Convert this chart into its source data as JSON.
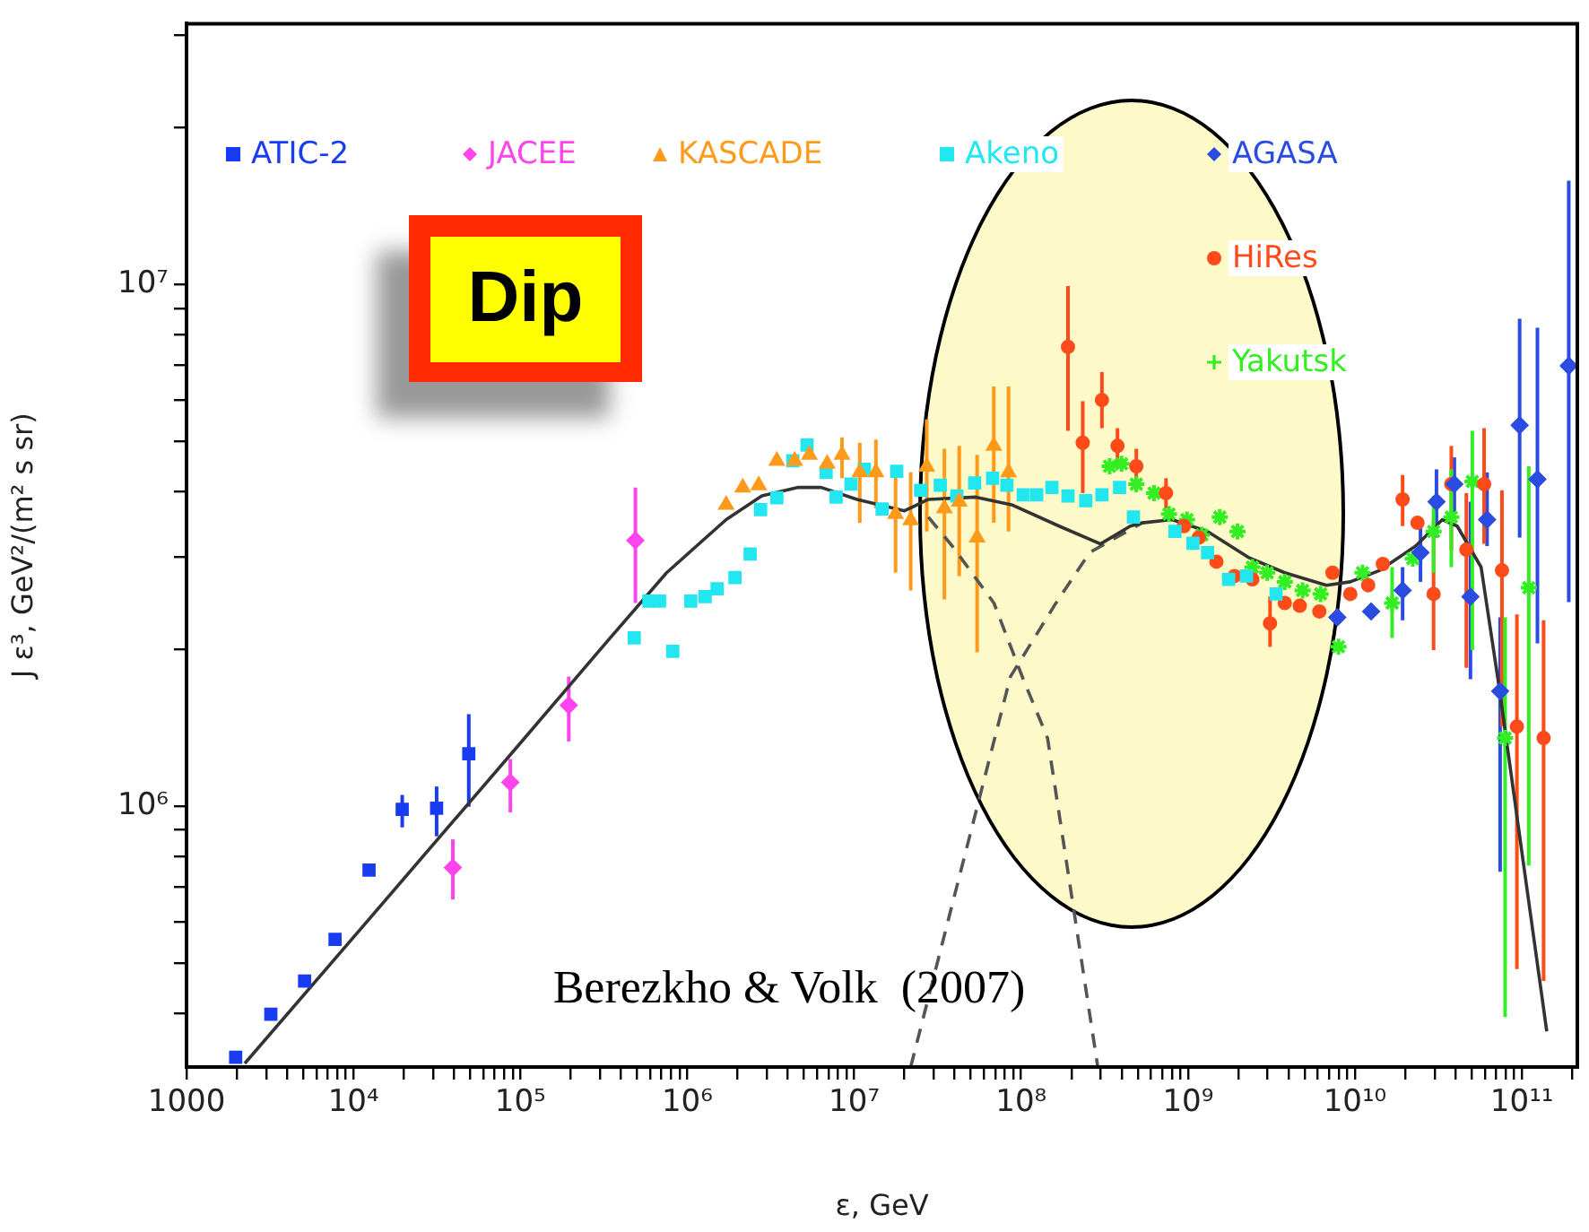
{
  "chart_data": {
    "type": "scatter",
    "xlabel": "ε, GeV",
    "ylabel": "J ε³, GeV²/(m² s sr)",
    "log": "xy",
    "legend": "top",
    "xlim": [
      1000,
      215000000000
    ],
    "ylim": [
      316000,
      31600000
    ],
    "xticks": [
      {
        "value": 1000,
        "label": "1000"
      },
      {
        "value": 2000,
        "label": null
      },
      {
        "value": 3000,
        "label": null
      },
      {
        "value": 4000,
        "label": null
      },
      {
        "value": 5000,
        "label": null
      },
      {
        "value": 6000,
        "label": null
      },
      {
        "value": 7000,
        "label": null
      },
      {
        "value": 8000,
        "label": null
      },
      {
        "value": 9000,
        "label": null
      },
      {
        "value": 10000,
        "label": "10⁴"
      },
      {
        "value": 20000,
        "label": null
      },
      {
        "value": 30000,
        "label": null
      },
      {
        "value": 40000,
        "label": null
      },
      {
        "value": 50000,
        "label": null
      },
      {
        "value": 60000,
        "label": null
      },
      {
        "value": 70000,
        "label": null
      },
      {
        "value": 80000,
        "label": null
      },
      {
        "value": 90000,
        "label": null
      },
      {
        "value": 100000,
        "label": "10⁵"
      },
      {
        "value": 200000,
        "label": null
      },
      {
        "value": 300000,
        "label": null
      },
      {
        "value": 400000,
        "label": null
      },
      {
        "value": 500000,
        "label": null
      },
      {
        "value": 600000,
        "label": null
      },
      {
        "value": 700000,
        "label": null
      },
      {
        "value": 800000,
        "label": null
      },
      {
        "value": 900000,
        "label": null
      },
      {
        "value": 1000000,
        "label": "10⁶"
      },
      {
        "value": 2000000,
        "label": null
      },
      {
        "value": 3000000,
        "label": null
      },
      {
        "value": 4000000,
        "label": null
      },
      {
        "value": 5000000,
        "label": null
      },
      {
        "value": 6000000,
        "label": null
      },
      {
        "value": 7000000,
        "label": null
      },
      {
        "value": 8000000,
        "label": null
      },
      {
        "value": 9000000,
        "label": null
      },
      {
        "value": 10000000,
        "label": "10⁷"
      },
      {
        "value": 20000000,
        "label": null
      },
      {
        "value": 30000000,
        "label": null
      },
      {
        "value": 40000000,
        "label": null
      },
      {
        "value": 50000000,
        "label": null
      },
      {
        "value": 60000000,
        "label": null
      },
      {
        "value": 70000000,
        "label": null
      },
      {
        "value": 80000000,
        "label": null
      },
      {
        "value": 90000000,
        "label": null
      },
      {
        "value": 100000000,
        "label": "10⁸"
      },
      {
        "value": 200000000,
        "label": null
      },
      {
        "value": 300000000,
        "label": null
      },
      {
        "value": 400000000,
        "label": null
      },
      {
        "value": 500000000,
        "label": null
      },
      {
        "value": 600000000,
        "label": null
      },
      {
        "value": 700000000,
        "label": null
      },
      {
        "value": 800000000,
        "label": null
      },
      {
        "value": 900000000,
        "label": null
      },
      {
        "value": 1000000000,
        "label": "10⁹"
      },
      {
        "value": 2000000000,
        "label": null
      },
      {
        "value": 3000000000,
        "label": null
      },
      {
        "value": 4000000000,
        "label": null
      },
      {
        "value": 5000000000,
        "label": null
      },
      {
        "value": 6000000000,
        "label": null
      },
      {
        "value": 7000000000,
        "label": null
      },
      {
        "value": 8000000000,
        "label": null
      },
      {
        "value": 9000000000,
        "label": null
      },
      {
        "value": 10000000000,
        "label": "10¹⁰"
      },
      {
        "value": 20000000000,
        "label": null
      },
      {
        "value": 30000000000,
        "label": null
      },
      {
        "value": 40000000000,
        "label": null
      },
      {
        "value": 50000000000,
        "label": null
      },
      {
        "value": 60000000000,
        "label": null
      },
      {
        "value": 70000000000,
        "label": null
      },
      {
        "value": 80000000000,
        "label": null
      },
      {
        "value": 90000000000,
        "label": null
      },
      {
        "value": 100000000000,
        "label": "10¹¹"
      },
      {
        "value": 200000000000,
        "label": null
      }
    ],
    "yticks": [
      {
        "value": 400000,
        "label": null
      },
      {
        "value": 500000,
        "label": null
      },
      {
        "value": 600000,
        "label": null
      },
      {
        "value": 700000,
        "label": null
      },
      {
        "value": 800000,
        "label": null
      },
      {
        "value": 900000,
        "label": null
      },
      {
        "value": 1000000,
        "label": "10⁶"
      },
      {
        "value": 2000000,
        "label": null
      },
      {
        "value": 3000000,
        "label": null
      },
      {
        "value": 4000000,
        "label": null
      },
      {
        "value": 5000000,
        "label": null
      },
      {
        "value": 6000000,
        "label": null
      },
      {
        "value": 7000000,
        "label": null
      },
      {
        "value": 8000000,
        "label": null
      },
      {
        "value": 9000000,
        "label": null
      },
      {
        "value": 10000000,
        "label": "10⁷"
      },
      {
        "value": 20000000,
        "label": null
      },
      {
        "value": 30000000,
        "label": null
      }
    ],
    "annotations": [
      "Dip",
      "Berezkho & Volk  (2007)"
    ],
    "series": [
      {
        "type": "line",
        "color": "#333333",
        "marker": "none",
        "line_style": "solid",
        "x": [
          2234,
          10000,
          100000,
          332000,
          752000,
          1710000,
          2800000,
          4570000,
          6350000,
          10400000,
          20000000,
          27800000,
          53600000,
          87700000,
          169000000,
          299000000,
          451000000,
          532000000,
          802000000,
          1310000000,
          2330000000,
          3800000000,
          6750000000,
          9380000000,
          14100000000,
          23100000000,
          33400000000,
          41000000000,
          57000000000,
          72900000000,
          101000000000,
          141000000000
        ],
        "values": [
          321000,
          560000,
          1320000,
          2070000,
          2800000,
          3540000,
          3930000,
          4080000,
          4080000,
          3870000,
          3680000,
          3870000,
          3910000,
          3780000,
          3440000,
          3180000,
          3440000,
          3490000,
          3540000,
          3360000,
          2990000,
          2800000,
          2650000,
          2690000,
          2830000,
          3150000,
          3540000,
          3440000,
          2870000,
          1700000,
          798000,
          370000
        ]
      },
      {
        "type": "line",
        "color": "#555555",
        "marker": "none",
        "line_style": "dashed",
        "x": [
          27800000,
          38700000,
          68700000,
          103000000,
          144000000,
          288000000
        ],
        "values": [
          3580000,
          3150000,
          2450000,
          1750000,
          1350000,
          316000
        ]
      },
      {
        "type": "line",
        "color": "#555555",
        "marker": "none",
        "line_style": "dashed",
        "x": [
          21800000,
          43400000,
          86300000,
          158000000,
          257000000,
          532000000
        ],
        "values": [
          316000,
          748000,
          1770000,
          2420000,
          3060000,
          3490000
        ]
      },
      {
        "name": "ATIC-2",
        "type": "scatter",
        "color": "#1a3cf0",
        "marker": "square",
        "x": [
          1970,
          3200,
          5100,
          7760,
          12400,
          19600,
          31500,
          49100
        ],
        "values": [
          330000,
          399000,
          462000,
          555000,
          754000,
          985000,
          990000,
          1260000
        ],
        "errors": [
          null,
          null,
          null,
          null,
          null,
          [
            910000,
            1050000
          ],
          [
            875000,
            1090000
          ],
          [
            997000,
            1500000
          ]
        ]
      },
      {
        "name": "JACEE",
        "type": "scatter",
        "color": "#ff44ee",
        "marker": "diamond",
        "x": [
          39400,
          87100,
          195000,
          489000
        ],
        "values": [
          762000,
          1110000,
          1560000,
          3230000
        ],
        "errors": [
          [
            662000,
            863000
          ],
          [
            972000,
            1230000
          ],
          [
            1330000,
            1770000
          ],
          [
            2450000,
            4080000
          ]
        ]
      },
      {
        "name": "KASCADE",
        "type": "scatter",
        "color": "#ff9a1a",
        "marker": "triangle",
        "x": [
          1710000,
          2150000,
          2680000,
          3440000,
          4400000,
          5390000,
          6890000,
          8450000,
          10800000,
          13500000,
          17700000,
          21800000,
          27200000,
          34700000,
          42600000,
          54500000,
          68600000,
          84100000
        ],
        "values": [
          3780000,
          4080000,
          4120000,
          4590000,
          4590000,
          4710000,
          4530000,
          4710000,
          4360000,
          4360000,
          3630000,
          3530000,
          4470000,
          3720000,
          3830000,
          3270000,
          4900000,
          4360000
        ],
        "errors": [
          null,
          null,
          null,
          null,
          null,
          null,
          null,
          [
            4250000,
            5090000
          ],
          [
            3490000,
            4970000
          ],
          [
            3720000,
            5040000
          ],
          [
            2800000,
            4360000
          ],
          [
            2590000,
            4360000
          ],
          [
            3360000,
            5510000
          ],
          [
            2490000,
            4840000
          ],
          [
            2760000,
            4900000
          ],
          [
            1970000,
            4710000
          ],
          [
            3490000,
            6370000
          ],
          [
            3360000,
            6370000
          ]
        ]
      },
      {
        "name": "Akeno",
        "type": "scatter",
        "color": "#22e6f0",
        "marker": "square",
        "x": [
          481000,
          589000,
          682000,
          819000,
          1050000,
          1280000,
          1510000,
          1930000,
          2380000,
          2750000,
          3440000,
          4290000,
          5220000,
          6790000,
          7800000,
          9570000,
          11500000,
          14700000,
          18000000,
          25000000,
          32800000,
          41200000,
          52700000,
          67500000,
          82200000,
          103000000,
          124000000,
          153000000,
          191000000,
          244000000,
          305000000,
          389000000,
          471000000,
          835000000,
          1070000000,
          1310000000,
          1750000000,
          2240000000,
          3370000000
        ],
        "values": [
          2100000,
          2470000,
          2470000,
          1980000,
          2470000,
          2520000,
          2610000,
          2740000,
          3040000,
          3700000,
          3900000,
          4590000,
          4920000,
          4360000,
          3910000,
          4140000,
          4420000,
          3710000,
          4380000,
          4030000,
          4120000,
          3930000,
          4160000,
          4250000,
          4120000,
          3950000,
          3950000,
          4080000,
          3930000,
          3850000,
          3950000,
          4080000,
          3580000,
          3360000,
          3190000,
          3060000,
          2720000,
          2760000,
          2550000
        ]
      },
      {
        "name": "AGASA",
        "type": "scatter",
        "color": "#2b4ce0",
        "marker": "diamond",
        "x": [
          7840000000,
          12500000000,
          19300000000,
          24700000000,
          30800000000,
          39400000000,
          49200000000,
          61900000000,
          74100000000,
          97000000000,
          124000000000,
          191000000000
        ],
        "values": [
          2300000,
          2360000,
          2590000,
          3060000,
          3830000,
          4140000,
          2520000,
          3540000,
          1660000,
          5370000,
          4230000,
          6980000
        ],
        "errors": [
          null,
          null,
          [
            2270000,
            2870000
          ],
          [
            2690000,
            3440000
          ],
          [
            3270000,
            4420000
          ],
          [
            3630000,
            4660000
          ],
          [
            1750000,
            3830000
          ],
          [
            3150000,
            4360000
          ],
          [
            748000,
            2300000
          ],
          [
            3270000,
            8590000
          ],
          [
            2050000,
            8260000
          ],
          [
            2460000,
            15800000
          ]
        ]
      },
      {
        "name": "HiRes",
        "type": "scatter",
        "color": "#ff4a1a",
        "marker": "circle",
        "x": [
          191000000,
          234000000,
          305000000,
          378000000,
          490000000,
          738000000,
          944000000,
          1160000000,
          1480000000,
          1900000000,
          2430000000,
          3100000000,
          3800000000,
          4670000000,
          6120000000,
          7340000000,
          9380000000,
          12000000000,
          14700000000,
          19300000000,
          23700000000,
          29600000000,
          37800000000,
          46500000000,
          59400000000,
          76000000000,
          93400000000,
          135000000000
        ],
        "values": [
          7590000,
          4970000,
          6000000,
          4900000,
          4480000,
          3980000,
          3440000,
          3270000,
          2940000,
          2760000,
          2720000,
          2240000,
          2450000,
          2420000,
          2360000,
          2800000,
          2550000,
          2650000,
          2910000,
          3870000,
          3490000,
          2550000,
          4140000,
          3100000,
          4140000,
          2830000,
          1420000,
          1350000
        ],
        "errors": [
          [
            5240000,
            9930000
          ],
          [
            3980000,
            5970000
          ],
          [
            5300000,
            6790000
          ],
          [
            4480000,
            5300000
          ],
          [
            4030000,
            4840000
          ],
          [
            3720000,
            4250000
          ],
          null,
          null,
          null,
          null,
          null,
          [
            2020000,
            2520000
          ],
          null,
          null,
          null,
          null,
          null,
          null,
          null,
          [
            3440000,
            4310000
          ],
          null,
          [
            1990000,
            3540000
          ],
          [
            3100000,
            4900000
          ],
          [
            1840000,
            3980000
          ],
          [
            3180000,
            5300000
          ],
          [
            1420000,
            4030000
          ],
          [
            487000,
            2330000
          ],
          [
            462000,
            2270000
          ]
        ]
      },
      {
        "name": "Yakutsk",
        "type": "scatter",
        "color": "#33ee22",
        "marker": "cross",
        "x": [
          339000000,
          400000000,
          490000000,
          626000000,
          769000000,
          986000000,
          1210000000,
          1550000000,
          1980000000,
          2430000000,
          2980000000,
          3800000000,
          4860000000,
          6230000000,
          7970000000,
          11100000000,
          16700000000,
          22200000000,
          29600000000,
          37800000000,
          50500000000,
          79400000000,
          110000000000
        ],
        "values": [
          4480000,
          4530000,
          4140000,
          3980000,
          3630000,
          3540000,
          3310000,
          3580000,
          3360000,
          2870000,
          2800000,
          2690000,
          2590000,
          2550000,
          2020000,
          2800000,
          2450000,
          2980000,
          3360000,
          3580000,
          4190000,
          1350000,
          2620000
        ],
        "errors": [
          null,
          null,
          null,
          null,
          null,
          null,
          null,
          null,
          null,
          null,
          null,
          null,
          null,
          null,
          null,
          null,
          [
            2100000,
            2870000
          ],
          null,
          [
            2800000,
            3930000
          ],
          [
            2870000,
            4420000
          ],
          [
            1990000,
            5240000
          ],
          [
            394000,
            2300000
          ],
          [
            768000,
            4480000
          ]
        ]
      }
    ]
  }
}
